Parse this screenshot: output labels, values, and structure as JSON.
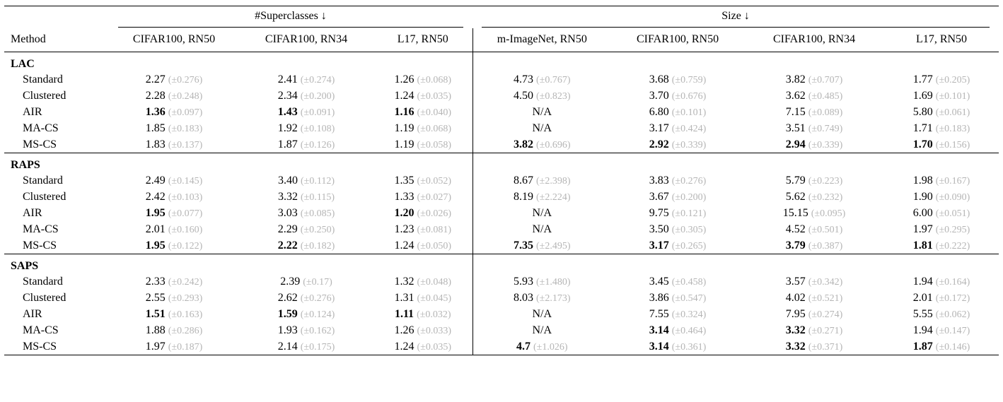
{
  "colors": {
    "pm_text": "#b5b5b5",
    "rule": "#000000"
  },
  "table": {
    "method_header": "Method",
    "col_groups": [
      {
        "label": "#Superclasses ↓",
        "span": 3
      },
      {
        "label": "Size ↓",
        "span": 4
      }
    ],
    "columns": [
      "CIFAR100, RN50",
      "CIFAR100, RN34",
      "L17, RN50",
      "m-ImageNet, RN50",
      "CIFAR100, RN50",
      "CIFAR100, RN34",
      "L17, RN50"
    ],
    "sections": [
      {
        "name": "LAC",
        "rows": [
          {
            "method": "Standard",
            "cells": [
              {
                "v": "2.27",
                "pm": "(±0.276)",
                "b": false
              },
              {
                "v": "2.41",
                "pm": "(±0.274)",
                "b": false
              },
              {
                "v": "1.26",
                "pm": "(±0.068)",
                "b": false
              },
              {
                "v": "4.73",
                "pm": "(±0.767)",
                "b": false
              },
              {
                "v": "3.68",
                "pm": "(±0.759)",
                "b": false
              },
              {
                "v": "3.82",
                "pm": "(±0.707)",
                "b": false
              },
              {
                "v": "1.77",
                "pm": "(±0.205)",
                "b": false
              }
            ]
          },
          {
            "method": "Clustered",
            "cells": [
              {
                "v": "2.28",
                "pm": "(±0.248)",
                "b": false
              },
              {
                "v": "2.34",
                "pm": "(±0.200)",
                "b": false
              },
              {
                "v": "1.24",
                "pm": "(±0.035)",
                "b": false
              },
              {
                "v": "4.50",
                "pm": "(±0.823)",
                "b": false
              },
              {
                "v": "3.70",
                "pm": "(±0.676)",
                "b": false
              },
              {
                "v": "3.62",
                "pm": "(±0.485)",
                "b": false
              },
              {
                "v": "1.69",
                "pm": "(±0.101)",
                "b": false
              }
            ]
          },
          {
            "method": "AIR",
            "cells": [
              {
                "v": "1.36",
                "pm": "(±0.097)",
                "b": true
              },
              {
                "v": "1.43",
                "pm": "(±0.091)",
                "b": true
              },
              {
                "v": "1.16",
                "pm": "(±0.040)",
                "b": true
              },
              {
                "v": "N/A",
                "pm": "",
                "b": false
              },
              {
                "v": "6.80",
                "pm": "(±0.101)",
                "b": false
              },
              {
                "v": "7.15",
                "pm": "(±0.089)",
                "b": false
              },
              {
                "v": "5.80",
                "pm": "(±0.061)",
                "b": false
              }
            ]
          },
          {
            "method": "MA-CS",
            "cells": [
              {
                "v": "1.85",
                "pm": "(±0.183)",
                "b": false
              },
              {
                "v": "1.92",
                "pm": "(±0.108)",
                "b": false
              },
              {
                "v": "1.19",
                "pm": "(±0.068)",
                "b": false
              },
              {
                "v": "N/A",
                "pm": "",
                "b": false
              },
              {
                "v": "3.17",
                "pm": "(±0.424)",
                "b": false
              },
              {
                "v": "3.51",
                "pm": "(±0.749)",
                "b": false
              },
              {
                "v": "1.71",
                "pm": "(±0.183)",
                "b": false
              }
            ]
          },
          {
            "method": "MS-CS",
            "cells": [
              {
                "v": "1.83",
                "pm": "(±0.137)",
                "b": false
              },
              {
                "v": "1.87",
                "pm": "(±0.126)",
                "b": false
              },
              {
                "v": "1.19",
                "pm": "(±0.058)",
                "b": false
              },
              {
                "v": "3.82",
                "pm": "(±0.696)",
                "b": true
              },
              {
                "v": "2.92",
                "pm": "(±0.339)",
                "b": true
              },
              {
                "v": "2.94",
                "pm": "(±0.339)",
                "b": true
              },
              {
                "v": "1.70",
                "pm": "(±0.156)",
                "b": true
              }
            ]
          }
        ]
      },
      {
        "name": "RAPS",
        "rows": [
          {
            "method": "Standard",
            "cells": [
              {
                "v": "2.49",
                "pm": "(±0.145)",
                "b": false
              },
              {
                "v": "3.40",
                "pm": "(±0.112)",
                "b": false
              },
              {
                "v": "1.35",
                "pm": "(±0.052)",
                "b": false
              },
              {
                "v": "8.67",
                "pm": "(±2.398)",
                "b": false
              },
              {
                "v": "3.83",
                "pm": "(±0.276)",
                "b": false
              },
              {
                "v": "5.79",
                "pm": "(±0.223)",
                "b": false
              },
              {
                "v": "1.98",
                "pm": "(±0.167)",
                "b": false
              }
            ]
          },
          {
            "method": "Clustered",
            "cells": [
              {
                "v": "2.42",
                "pm": "(±0.103)",
                "b": false
              },
              {
                "v": "3.32",
                "pm": "(±0.115)",
                "b": false
              },
              {
                "v": "1.33",
                "pm": "(±0.027)",
                "b": false
              },
              {
                "v": "8.19",
                "pm": "(±2.224)",
                "b": false
              },
              {
                "v": "3.67",
                "pm": "(±0.200)",
                "b": false
              },
              {
                "v": "5.62",
                "pm": "(±0.232)",
                "b": false
              },
              {
                "v": "1.90",
                "pm": "(±0.090)",
                "b": false
              }
            ]
          },
          {
            "method": "AIR",
            "cells": [
              {
                "v": "1.95",
                "pm": "(±0.077)",
                "b": true
              },
              {
                "v": "3.03",
                "pm": "(±0.085)",
                "b": false
              },
              {
                "v": "1.20",
                "pm": "(±0.026)",
                "b": true
              },
              {
                "v": "N/A",
                "pm": "",
                "b": false
              },
              {
                "v": "9.75",
                "pm": "(±0.121)",
                "b": false
              },
              {
                "v": "15.15",
                "pm": "(±0.095)",
                "b": false
              },
              {
                "v": "6.00",
                "pm": "(±0.051)",
                "b": false
              }
            ]
          },
          {
            "method": "MA-CS",
            "cells": [
              {
                "v": "2.01",
                "pm": "(±0.160)",
                "b": false
              },
              {
                "v": "2.29",
                "pm": "(±0.250)",
                "b": false
              },
              {
                "v": "1.23",
                "pm": "(±0.081)",
                "b": false
              },
              {
                "v": "N/A",
                "pm": "",
                "b": false
              },
              {
                "v": "3.50",
                "pm": "(±0.305)",
                "b": false
              },
              {
                "v": "4.52",
                "pm": "(±0.501)",
                "b": false
              },
              {
                "v": "1.97",
                "pm": "(±0.295)",
                "b": false
              }
            ]
          },
          {
            "method": "MS-CS",
            "cells": [
              {
                "v": "1.95",
                "pm": "(±0.122)",
                "b": true
              },
              {
                "v": "2.22",
                "pm": "(±0.182)",
                "b": true
              },
              {
                "v": "1.24",
                "pm": "(±0.050)",
                "b": false
              },
              {
                "v": "7.35",
                "pm": "(±2.495)",
                "b": true
              },
              {
                "v": "3.17",
                "pm": "(±0.265)",
                "b": true
              },
              {
                "v": "3.79",
                "pm": "(±0.387)",
                "b": true
              },
              {
                "v": "1.81",
                "pm": "(±0.222)",
                "b": true
              }
            ]
          }
        ]
      },
      {
        "name": "SAPS",
        "rows": [
          {
            "method": "Standard",
            "cells": [
              {
                "v": "2.33",
                "pm": "(±0.242)",
                "b": false
              },
              {
                "v": "2.39",
                "pm": "(±0.17)",
                "b": false
              },
              {
                "v": "1.32",
                "pm": "(±0.048)",
                "b": false
              },
              {
                "v": "5.93",
                "pm": "(±1.480)",
                "b": false
              },
              {
                "v": "3.45",
                "pm": "(±0.458)",
                "b": false
              },
              {
                "v": "3.57",
                "pm": "(±0.342)",
                "b": false
              },
              {
                "v": "1.94",
                "pm": "(±0.164)",
                "b": false
              }
            ]
          },
          {
            "method": "Clustered",
            "cells": [
              {
                "v": "2.55",
                "pm": "(±0.293)",
                "b": false
              },
              {
                "v": "2.62",
                "pm": "(±0.276)",
                "b": false
              },
              {
                "v": "1.31",
                "pm": "(±0.045)",
                "b": false
              },
              {
                "v": "8.03",
                "pm": "(±2.173)",
                "b": false
              },
              {
                "v": "3.86",
                "pm": "(±0.547)",
                "b": false
              },
              {
                "v": "4.02",
                "pm": "(±0.521)",
                "b": false
              },
              {
                "v": "2.01",
                "pm": "(±0.172)",
                "b": false
              }
            ]
          },
          {
            "method": "AIR",
            "cells": [
              {
                "v": "1.51",
                "pm": "(±0.163)",
                "b": true
              },
              {
                "v": "1.59",
                "pm": "(±0.124)",
                "b": true
              },
              {
                "v": "1.11",
                "pm": "(±0.032)",
                "b": true
              },
              {
                "v": "N/A",
                "pm": "",
                "b": false
              },
              {
                "v": "7.55",
                "pm": "(±0.324)",
                "b": false
              },
              {
                "v": "7.95",
                "pm": "(±0.274)",
                "b": false
              },
              {
                "v": "5.55",
                "pm": "(±0.062)",
                "b": false
              }
            ]
          },
          {
            "method": "MA-CS",
            "cells": [
              {
                "v": "1.88",
                "pm": "(±0.286)",
                "b": false
              },
              {
                "v": "1.93",
                "pm": "(±0.162)",
                "b": false
              },
              {
                "v": "1.26",
                "pm": "(±0.033)",
                "b": false
              },
              {
                "v": "N/A",
                "pm": "",
                "b": false
              },
              {
                "v": "3.14",
                "pm": "(±0.464)",
                "b": true
              },
              {
                "v": "3.32",
                "pm": "(±0.271)",
                "b": true
              },
              {
                "v": "1.94",
                "pm": "(±0.147)",
                "b": false
              }
            ]
          },
          {
            "method": "MS-CS",
            "cells": [
              {
                "v": "1.97",
                "pm": "(±0.187)",
                "b": false
              },
              {
                "v": "2.14",
                "pm": "(±0.175)",
                "b": false
              },
              {
                "v": "1.24",
                "pm": "(±0.035)",
                "b": false
              },
              {
                "v": "4.7",
                "pm": "(±1.026)",
                "b": true
              },
              {
                "v": "3.14",
                "pm": "(±0.361)",
                "b": true
              },
              {
                "v": "3.32",
                "pm": "(±0.371)",
                "b": true
              },
              {
                "v": "1.87",
                "pm": "(±0.146)",
                "b": true
              }
            ]
          }
        ]
      }
    ]
  }
}
